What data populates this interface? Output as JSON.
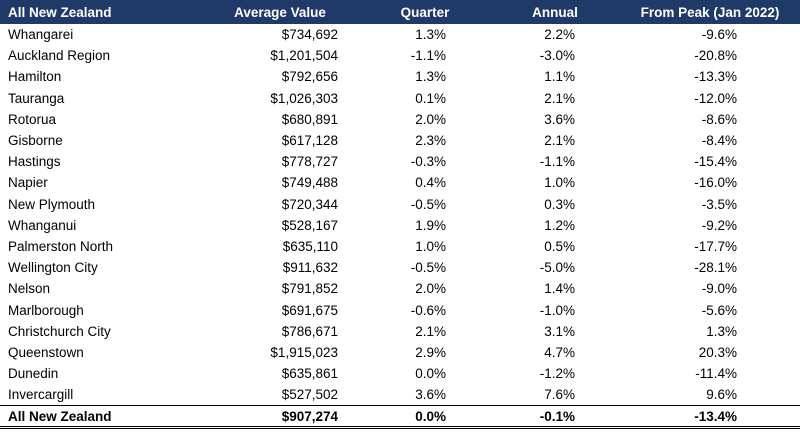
{
  "table": {
    "header": [
      "All New Zealand",
      "Average Value",
      "Quarter",
      "Annual",
      "From Peak (Jan 2022)"
    ],
    "rows": [
      [
        "Whangarei",
        "$734,692",
        "1.3%",
        "2.2%",
        "-9.6%"
      ],
      [
        "Auckland Region",
        "$1,201,504",
        "-1.1%",
        "-3.0%",
        "-20.8%"
      ],
      [
        "Hamilton",
        "$792,656",
        "1.3%",
        "1.1%",
        "-13.3%"
      ],
      [
        "Tauranga",
        "$1,026,303",
        "0.1%",
        "2.1%",
        "-12.0%"
      ],
      [
        "Rotorua",
        "$680,891",
        "2.0%",
        "3.6%",
        "-8.6%"
      ],
      [
        "Gisborne",
        "$617,128",
        "2.3%",
        "2.1%",
        "-8.4%"
      ],
      [
        "Hastings",
        "$778,727",
        "-0.3%",
        "-1.1%",
        "-15.4%"
      ],
      [
        "Napier",
        "$749,488",
        "0.4%",
        "1.0%",
        "-16.0%"
      ],
      [
        "New Plymouth",
        "$720,344",
        "-0.5%",
        "0.3%",
        "-3.5%"
      ],
      [
        "Whanganui",
        "$528,167",
        "1.9%",
        "1.2%",
        "-9.2%"
      ],
      [
        "Palmerston North",
        "$635,110",
        "1.0%",
        "0.5%",
        "-17.7%"
      ],
      [
        "Wellington City",
        "$911,632",
        "-0.5%",
        "-5.0%",
        "-28.1%"
      ],
      [
        "Nelson",
        "$791,852",
        "2.0%",
        "1.4%",
        "-9.0%"
      ],
      [
        "Marlborough",
        "$691,675",
        "-0.6%",
        "-1.0%",
        "-5.6%"
      ],
      [
        "Christchurch City",
        "$786,671",
        "2.1%",
        "3.1%",
        "1.3%"
      ],
      [
        "Queenstown",
        "$1,915,023",
        "2.9%",
        "4.7%",
        "20.3%"
      ],
      [
        "Dunedin",
        "$635,861",
        "0.0%",
        "-1.2%",
        "-11.4%"
      ],
      [
        "Invercargill",
        "$527,502",
        "3.6%",
        "7.6%",
        "9.6%"
      ]
    ],
    "total": [
      "All New Zealand",
      "$907,274",
      "0.0%",
      "-0.1%",
      "-13.4%"
    ]
  }
}
